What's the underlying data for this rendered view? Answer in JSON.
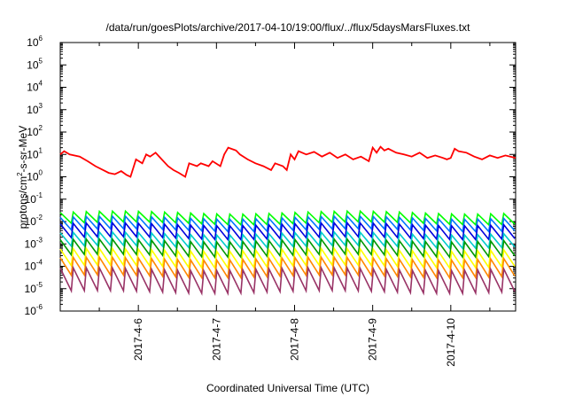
{
  "chart_data": {
    "type": "line",
    "title": "/data/run/goesPlots/archive/2017-04-10/19:00/flux/../flux/5daysMarsFluxes.txt",
    "xlabel": "Coordinated Universal Time (UTC)",
    "ylabel": "protons/cm2-s-sr-MeV",
    "ylabel_parts": [
      "protons/cm",
      "2",
      "-s-sr-MeV"
    ],
    "x_unit": "days since plot start",
    "xlim": [
      0,
      5.83
    ],
    "yscale": "log",
    "ylim": [
      1e-06,
      1000000.0
    ],
    "y_ticks": [
      {
        "base": "10",
        "exp": "-6",
        "value": 1e-06
      },
      {
        "base": "10",
        "exp": "-5",
        "value": 1e-05
      },
      {
        "base": "10",
        "exp": "-4",
        "value": 0.0001
      },
      {
        "base": "10",
        "exp": "-3",
        "value": 0.001
      },
      {
        "base": "10",
        "exp": "-2",
        "value": 0.01
      },
      {
        "base": "10",
        "exp": "-1",
        "value": 0.1
      },
      {
        "base": "10",
        "exp": "0",
        "value": 1
      },
      {
        "base": "10",
        "exp": "1",
        "value": 10
      },
      {
        "base": "10",
        "exp": "2",
        "value": 100
      },
      {
        "base": "10",
        "exp": "3",
        "value": 1000
      },
      {
        "base": "10",
        "exp": "4",
        "value": 10000
      },
      {
        "base": "10",
        "exp": "5",
        "value": 100000
      },
      {
        "base": "10",
        "exp": "6",
        "value": 1000000
      }
    ],
    "x_ticks": [
      {
        "label": "2017-4-6",
        "value": 1.0
      },
      {
        "label": "2017-4-7",
        "value": 2.0
      },
      {
        "label": "2017-4-8",
        "value": 3.0
      },
      {
        "label": "2017-4-9",
        "value": 4.0
      },
      {
        "label": "2017-4-10",
        "value": 5.0
      }
    ],
    "grid": false,
    "legend": "none",
    "series": [
      {
        "color": "#ff0000",
        "x": [
          0,
          0.05,
          0.12,
          0.25,
          0.35,
          0.45,
          0.55,
          0.62,
          0.7,
          0.78,
          0.85,
          0.9,
          0.97,
          1.05,
          1.1,
          1.15,
          1.22,
          1.3,
          1.38,
          1.45,
          1.52,
          1.6,
          1.65,
          1.75,
          1.8,
          1.9,
          1.95,
          2.05,
          2.1,
          2.15,
          2.25,
          2.3,
          2.4,
          2.5,
          2.6,
          2.7,
          2.75,
          2.85,
          2.9,
          2.95,
          3.0,
          3.05,
          3.15,
          3.25,
          3.35,
          3.45,
          3.55,
          3.65,
          3.75,
          3.85,
          3.95,
          4.0,
          4.05,
          4.1,
          4.15,
          4.2,
          4.3,
          4.4,
          4.5,
          4.6,
          4.7,
          4.8,
          4.9,
          4.95,
          5.0,
          5.05,
          5.1,
          5.2,
          5.3,
          5.4,
          5.5,
          5.6,
          5.7,
          5.83
        ],
        "y": [
          10,
          14,
          10,
          8,
          5,
          3,
          2,
          1.5,
          1.3,
          1.8,
          1.2,
          1,
          6,
          4,
          10,
          8,
          12,
          6,
          3,
          2,
          1.5,
          1,
          4,
          3,
          4,
          3,
          5,
          3,
          10,
          20,
          15,
          10,
          6,
          4,
          3,
          2,
          4,
          3,
          2,
          10,
          6,
          14,
          10,
          13,
          8,
          12,
          7,
          10,
          6,
          8,
          5,
          20,
          12,
          22,
          15,
          18,
          12,
          10,
          8,
          12,
          7,
          9,
          7,
          6,
          7,
          18,
          14,
          12,
          8,
          6,
          9,
          7,
          9,
          7
        ]
      },
      {
        "color": "#00ff00",
        "base": 0.022,
        "amp": 0.5,
        "phase": 0.0,
        "lowFactor": 0.38
      },
      {
        "color": "#0077ff",
        "base": 0.013,
        "amp": 0.5,
        "phase": 0.15,
        "lowFactor": 0.32
      },
      {
        "color": "#0000dd",
        "base": 0.0065,
        "amp": 0.55,
        "phase": 0.3,
        "lowFactor": 0.28
      },
      {
        "color": "#00cccc",
        "base": 0.0025,
        "amp": 0.6,
        "phase": 0.45,
        "lowFactor": 0.3
      },
      {
        "color": "#009900",
        "base": 0.0012,
        "amp": 0.65,
        "phase": 0.55,
        "lowFactor": 0.25
      },
      {
        "color": "#ffff00",
        "base": 0.00045,
        "amp": 0.7,
        "phase": 0.65,
        "lowFactor": 0.22
      },
      {
        "color": "#ff8800",
        "base": 0.00018,
        "amp": 0.75,
        "phase": 0.75,
        "lowFactor": 0.2
      },
      {
        "color": "#993366",
        "base": 6e-05,
        "amp": 0.8,
        "phase": 0.85,
        "lowFactor": 0.12
      }
    ]
  }
}
